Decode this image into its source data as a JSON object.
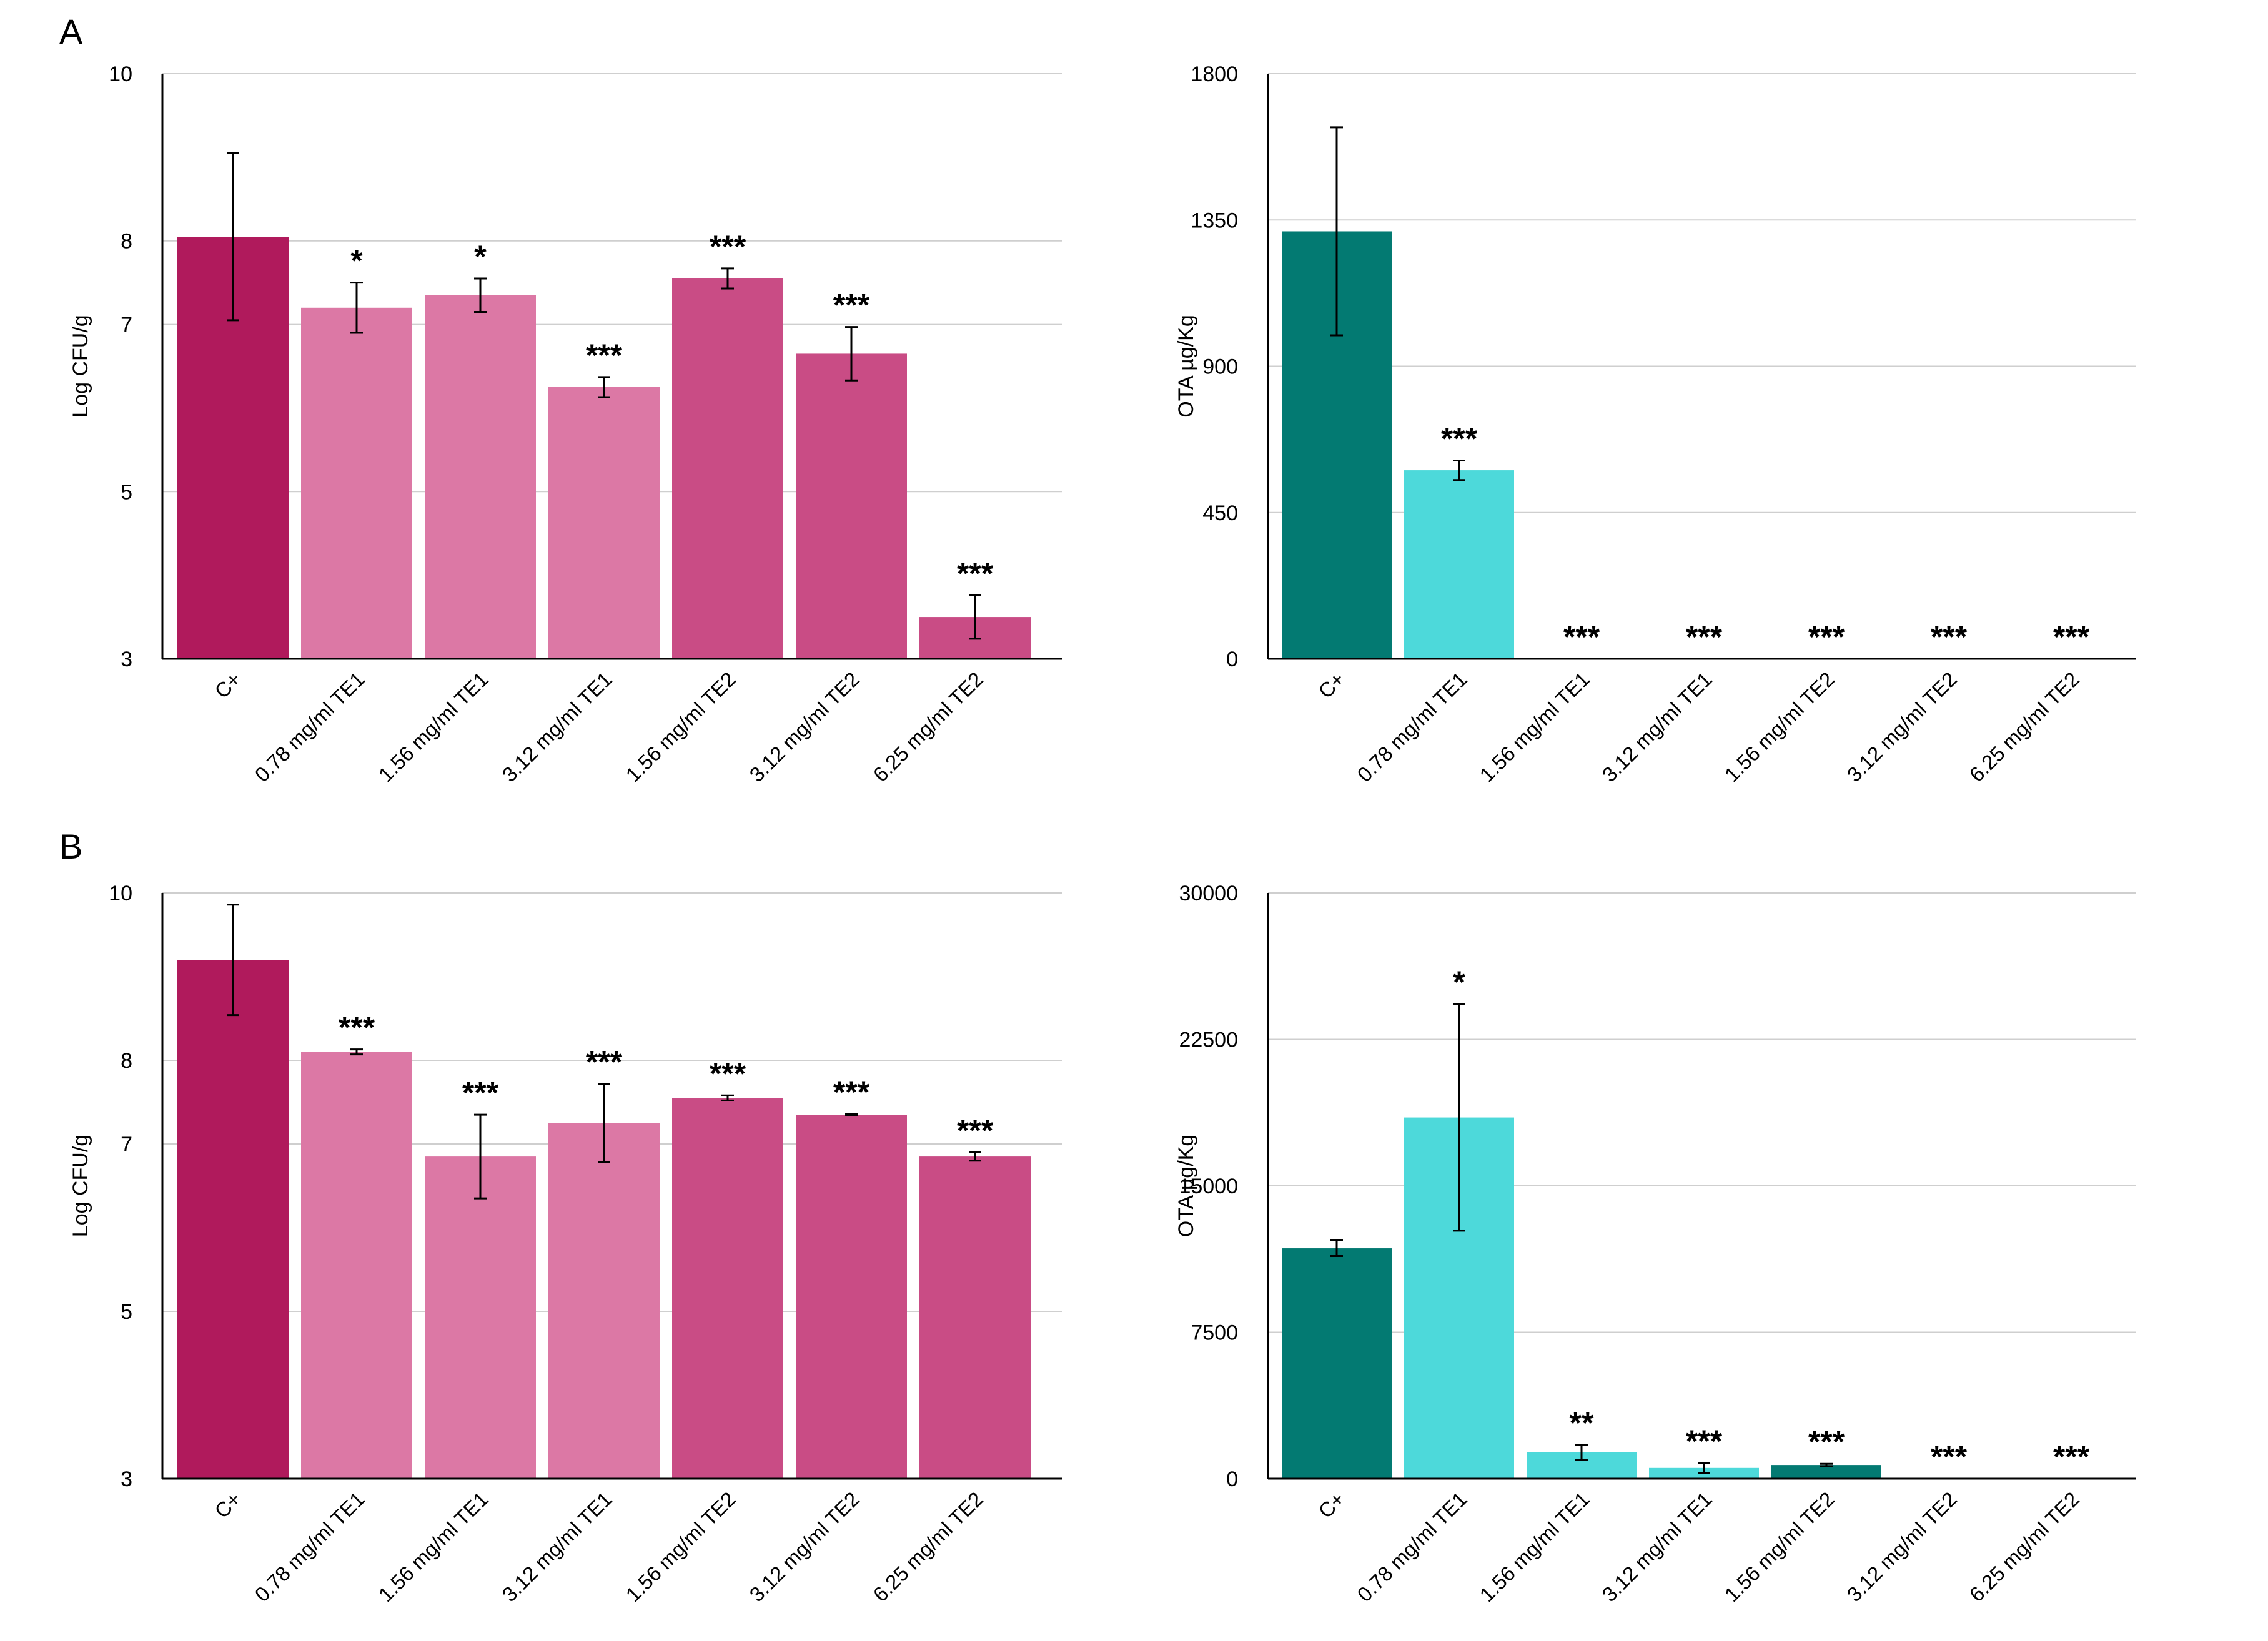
{
  "panels": [
    "A",
    "B"
  ],
  "colors": {
    "crimson": "#b01a5c",
    "pink_light": "#dc78a5",
    "pink_mid": "#c94c85",
    "teal_dark": "#037a72",
    "teal_light": "#4dd9da"
  },
  "chart_data": [
    {
      "id": "A-cfu",
      "panel": "A",
      "type": "bar",
      "title": "",
      "xlabel": "",
      "ylabel": "Log CFU/g",
      "ylim": [
        3,
        10
      ],
      "tick_values": [
        3,
        5,
        7,
        8,
        10
      ],
      "tick_labels": [
        "3",
        "5",
        "7",
        "8",
        "10"
      ],
      "categories": [
        "C+",
        "0.78 mg/ml TE1",
        "1.56 mg/ml TE1",
        "3.12 mg/ml TE1",
        "1.56 mg/ml TE2",
        "3.12 mg/ml TE2",
        "6.25 mg/ml TE2"
      ],
      "values": [
        8.05,
        7.2,
        7.35,
        6.25,
        7.55,
        6.65,
        3.5
      ],
      "errors": [
        1.0,
        0.3,
        0.2,
        0.12,
        0.12,
        0.32,
        0.26
      ],
      "significance": [
        "",
        "*",
        "*",
        "***",
        "***",
        "***",
        "***"
      ],
      "bar_colors": [
        "#b01a5c",
        "#dc78a5",
        "#dc78a5",
        "#dc78a5",
        "#c94c85",
        "#c94c85",
        "#c94c85"
      ]
    },
    {
      "id": "A-ota",
      "panel": "A",
      "type": "bar",
      "title": "",
      "xlabel": "",
      "ylabel": "OTA µg/Kg",
      "ylim": [
        0,
        1800
      ],
      "tick_values": [
        0,
        450,
        900,
        1350,
        1800
      ],
      "tick_labels": [
        "0",
        "450",
        "900",
        "1350",
        "1800"
      ],
      "categories": [
        "C+",
        "0.78 mg/ml TE1",
        "1.56 mg/ml TE1",
        "3.12 mg/ml TE1",
        "1.56 mg/ml TE2",
        "3.12 mg/ml TE2",
        "6.25 mg/ml TE2"
      ],
      "values": [
        1315,
        580,
        0,
        0,
        0,
        0,
        0
      ],
      "errors": [
        320,
        30,
        0,
        0,
        0,
        0,
        0
      ],
      "significance": [
        "",
        "***",
        "***",
        "***",
        "***",
        "***",
        "***"
      ],
      "bar_colors": [
        "#037a72",
        "#4dd9da",
        "#4dd9da",
        "#4dd9da",
        "#037a72",
        "#037a72",
        "#037a72"
      ]
    },
    {
      "id": "B-cfu",
      "panel": "B",
      "type": "bar",
      "title": "",
      "xlabel": "",
      "ylabel": "Log CFU/g",
      "ylim": [
        3,
        10
      ],
      "tick_values": [
        3,
        5,
        7,
        8,
        10
      ],
      "tick_labels": [
        "3",
        "5",
        "7",
        "8",
        "10"
      ],
      "categories": [
        "C+",
        "0.78 mg/ml TE1",
        "1.56 mg/ml TE1",
        "3.12 mg/ml TE1",
        "1.56 mg/ml TE2",
        "3.12 mg/ml TE2",
        "6.25 mg/ml TE2"
      ],
      "values": [
        9.2,
        8.1,
        6.85,
        7.25,
        7.55,
        7.35,
        6.85
      ],
      "errors": [
        0.66,
        0.03,
        0.5,
        0.47,
        0.03,
        0.01,
        0.05
      ],
      "significance": [
        "",
        "***",
        "***",
        "***",
        "***",
        "***",
        "***"
      ],
      "bar_colors": [
        "#b01a5c",
        "#dc78a5",
        "#dc78a5",
        "#dc78a5",
        "#c94c85",
        "#c94c85",
        "#c94c85"
      ]
    },
    {
      "id": "B-ota",
      "panel": "B",
      "type": "bar",
      "title": "",
      "xlabel": "",
      "ylabel": "OTA µg/Kg",
      "ylim": [
        0,
        30000
      ],
      "tick_values": [
        0,
        7500,
        15000,
        22500,
        30000
      ],
      "tick_labels": [
        "0",
        "7500",
        "15000",
        "22500",
        "30000"
      ],
      "categories": [
        "C+",
        "0.78 mg/ml TE1",
        "1.56 mg/ml TE1",
        "3.12 mg/ml TE1",
        "1.56 mg/ml TE2",
        "3.12 mg/ml TE2",
        "6.25 mg/ml TE2"
      ],
      "values": [
        11800,
        18500,
        1350,
        550,
        700,
        0,
        0
      ],
      "errors": [
        400,
        5800,
        380,
        250,
        60,
        0,
        0
      ],
      "significance": [
        "",
        "*",
        "**",
        "***",
        "***",
        "***",
        "***"
      ],
      "bar_colors": [
        "#037a72",
        "#4dd9da",
        "#4dd9da",
        "#4dd9da",
        "#037a72",
        "#037a72",
        "#037a72"
      ]
    }
  ]
}
